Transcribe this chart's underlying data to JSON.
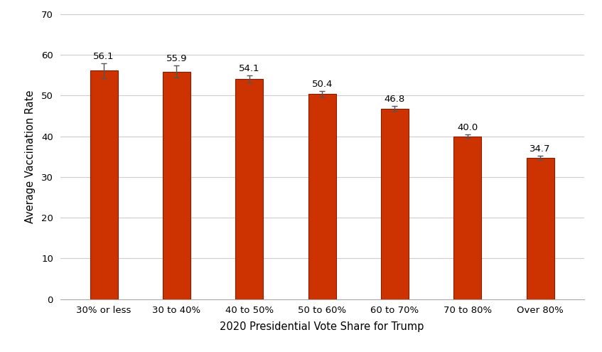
{
  "categories": [
    "30% or less",
    "30 to 40%",
    "40 to 50%",
    "50 to 60%",
    "60 to 70%",
    "70 to 80%",
    "Over 80%"
  ],
  "values": [
    56.1,
    55.9,
    54.1,
    50.4,
    46.8,
    40.0,
    34.7
  ],
  "errors": [
    1.8,
    1.5,
    0.9,
    0.7,
    0.6,
    0.5,
    0.5
  ],
  "bar_color": "#CC3300",
  "bar_edge_color": "#8B1A00",
  "error_color": "#555555",
  "xlabel": "2020 Presidential Vote Share for Trump",
  "ylabel": "Average Vaccination Rate",
  "ylim": [
    0,
    70
  ],
  "yticks": [
    0,
    10,
    20,
    30,
    40,
    50,
    60,
    70
  ],
  "label_fontsize": 10.5,
  "tick_fontsize": 9.5,
  "value_fontsize": 9.5,
  "background_color": "#ffffff",
  "grid_color": "#cccccc",
  "bar_width": 0.38
}
